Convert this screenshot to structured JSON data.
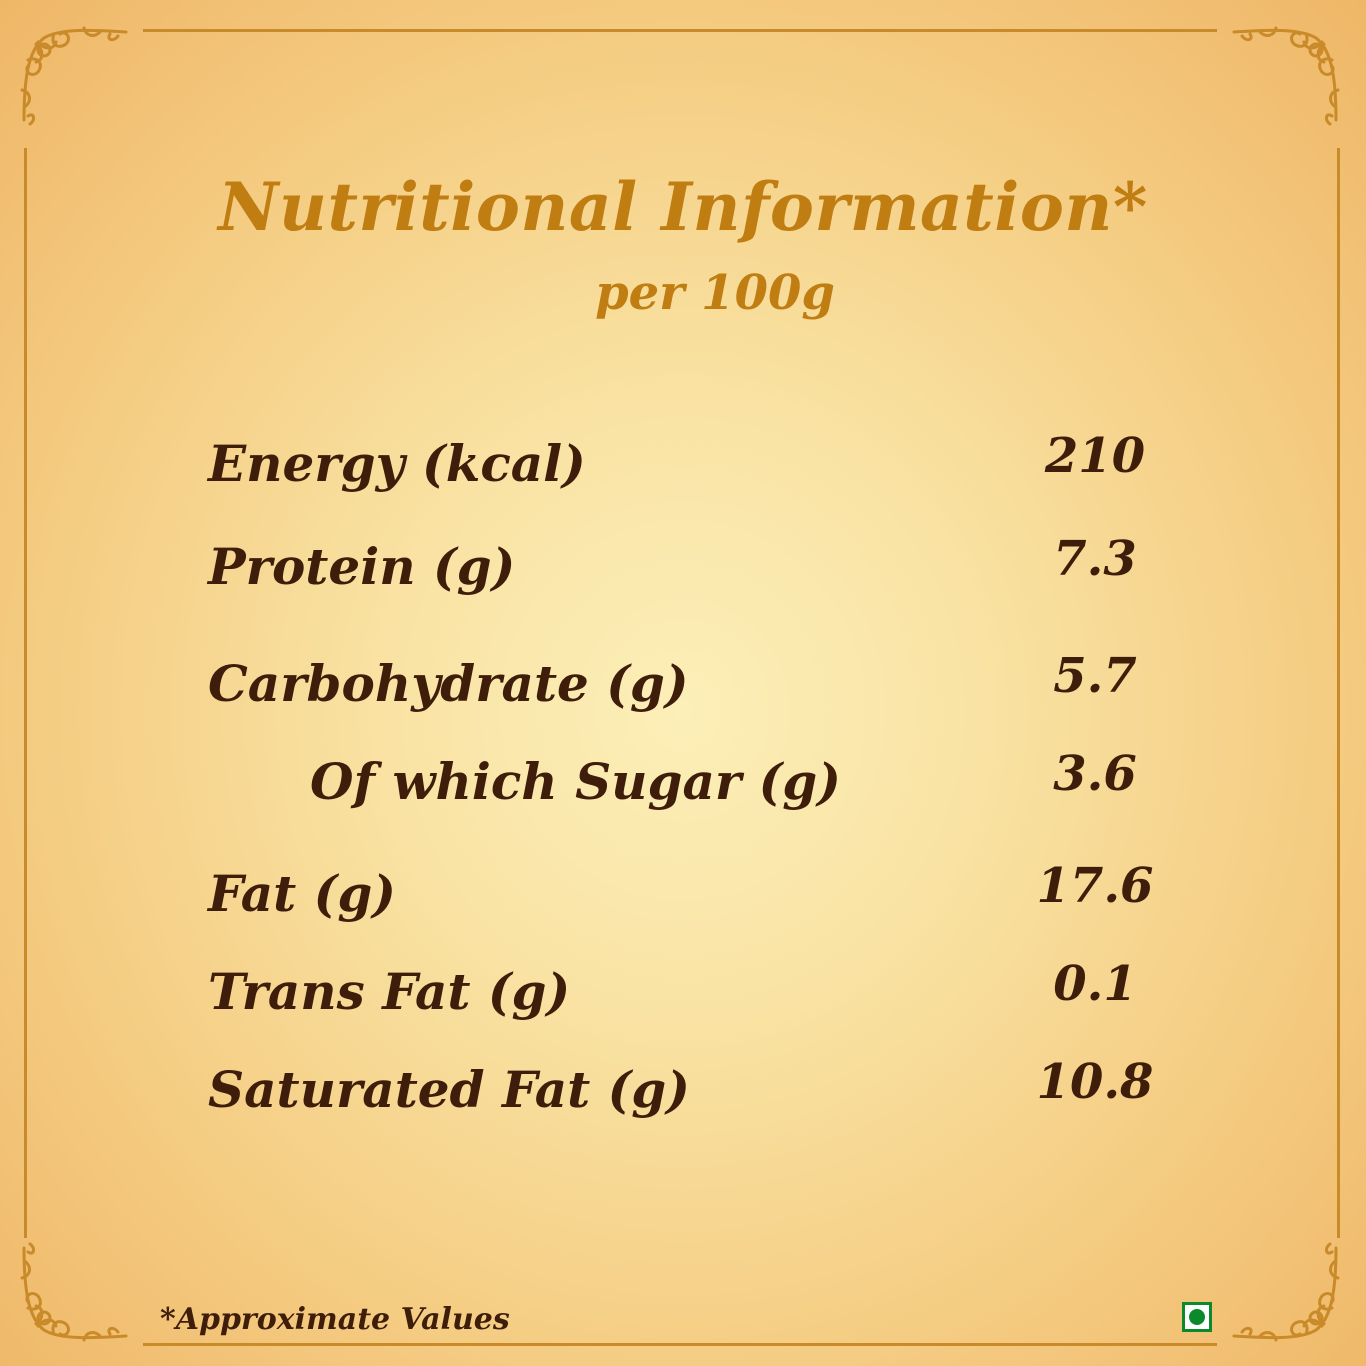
{
  "colors": {
    "title": "#c07d12",
    "text": "#3e1d0a",
    "frame": "#c98a2a",
    "veg_mark": "#0a8a2a"
  },
  "header": {
    "title": "Nutritional Information*",
    "subtitle": "per 100g"
  },
  "nutrients": [
    {
      "label": "Energy (kcal)",
      "value": "210"
    },
    {
      "label": "Protein (g)",
      "value": "7.3"
    },
    {
      "label": "Carbohydrate (g)",
      "value": "5.7"
    },
    {
      "label": "Of which Sugar (g)",
      "value": "3.6",
      "sub_item": true
    },
    {
      "label": "Fat (g)",
      "value": "17.6"
    },
    {
      "label": "Trans Fat (g)",
      "value": "0.1"
    },
    {
      "label": "Saturated Fat (g)",
      "value": "10.8"
    }
  ],
  "footer": {
    "note": "*Approximate Values",
    "veg_mark_icon": "vegetarian-mark-icon"
  }
}
